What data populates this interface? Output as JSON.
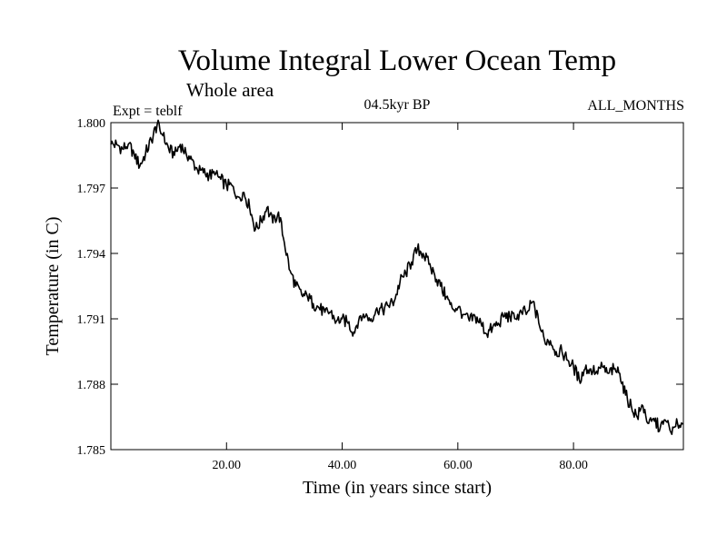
{
  "chart_data": {
    "type": "line",
    "title": "Volume Integral Lower Ocean Temp",
    "subtitle": "Whole area",
    "experiment_label": "Expt = teblf",
    "period_label": "04.5kyr BP",
    "months_label": "ALL_MONTHS",
    "xlabel": "Time (in years since start)",
    "ylabel": "Temperature (in C)",
    "xlim": [
      0,
      99
    ],
    "ylim": [
      1.785,
      1.8
    ],
    "x_ticks": [
      20,
      40,
      60,
      80
    ],
    "x_tick_labels": [
      "20.00",
      "40.00",
      "60.00",
      "80.00"
    ],
    "y_ticks": [
      1.785,
      1.788,
      1.791,
      1.794,
      1.797,
      1.8
    ],
    "y_tick_labels": [
      "1.785",
      "1.788",
      "1.791",
      "1.794",
      "1.797",
      "1.800"
    ],
    "grid": false,
    "series": [
      {
        "name": "Volume Integral Lower Ocean Temp",
        "x": [
          0,
          1,
          2,
          3,
          4,
          5,
          6,
          7,
          8,
          9,
          10,
          11,
          12,
          13,
          14,
          15,
          16,
          17,
          18,
          19,
          20,
          21,
          22,
          23,
          24,
          25,
          26,
          27,
          28,
          29,
          30,
          31,
          32,
          33,
          34,
          35,
          36,
          37,
          38,
          39,
          40,
          41,
          42,
          43,
          44,
          45,
          46,
          47,
          48,
          49,
          50,
          51,
          52,
          53,
          54,
          55,
          56,
          57,
          58,
          59,
          60,
          61,
          62,
          63,
          64,
          65,
          66,
          67,
          68,
          69,
          70,
          71,
          72,
          73,
          74,
          75,
          76,
          77,
          78,
          79,
          80,
          81,
          82,
          83,
          84,
          85,
          86,
          87,
          88,
          89,
          90,
          91,
          92,
          93,
          94,
          95,
          96,
          97,
          98,
          99
        ],
        "values": [
          1.799,
          1.799,
          1.7988,
          1.799,
          1.7986,
          1.798,
          1.7986,
          1.7992,
          1.7999,
          1.7994,
          1.7988,
          1.7985,
          1.799,
          1.7986,
          1.7983,
          1.7978,
          1.7977,
          1.7976,
          1.7976,
          1.7974,
          1.7971,
          1.7971,
          1.7966,
          1.7968,
          1.7961,
          1.7951,
          1.7955,
          1.7961,
          1.7954,
          1.7959,
          1.7945,
          1.7932,
          1.7925,
          1.7921,
          1.792,
          1.7917,
          1.7915,
          1.7913,
          1.7913,
          1.7909,
          1.791,
          1.7908,
          1.7904,
          1.7911,
          1.7911,
          1.791,
          1.7915,
          1.7914,
          1.7916,
          1.7918,
          1.7927,
          1.7931,
          1.7936,
          1.7942,
          1.794,
          1.7935,
          1.793,
          1.7925,
          1.792,
          1.7915,
          1.7915,
          1.7912,
          1.7909,
          1.7911,
          1.7908,
          1.7903,
          1.7906,
          1.7908,
          1.7911,
          1.7911,
          1.791,
          1.7913,
          1.7913,
          1.7918,
          1.7908,
          1.79,
          1.79,
          1.7895,
          1.7895,
          1.7891,
          1.7888,
          1.7882,
          1.7887,
          1.7887,
          1.7886,
          1.7888,
          1.7885,
          1.7887,
          1.7885,
          1.7875,
          1.787,
          1.7865,
          1.787,
          1.7862,
          1.7863,
          1.786,
          1.7863,
          1.7857,
          1.7862,
          1.7862
        ]
      }
    ]
  }
}
